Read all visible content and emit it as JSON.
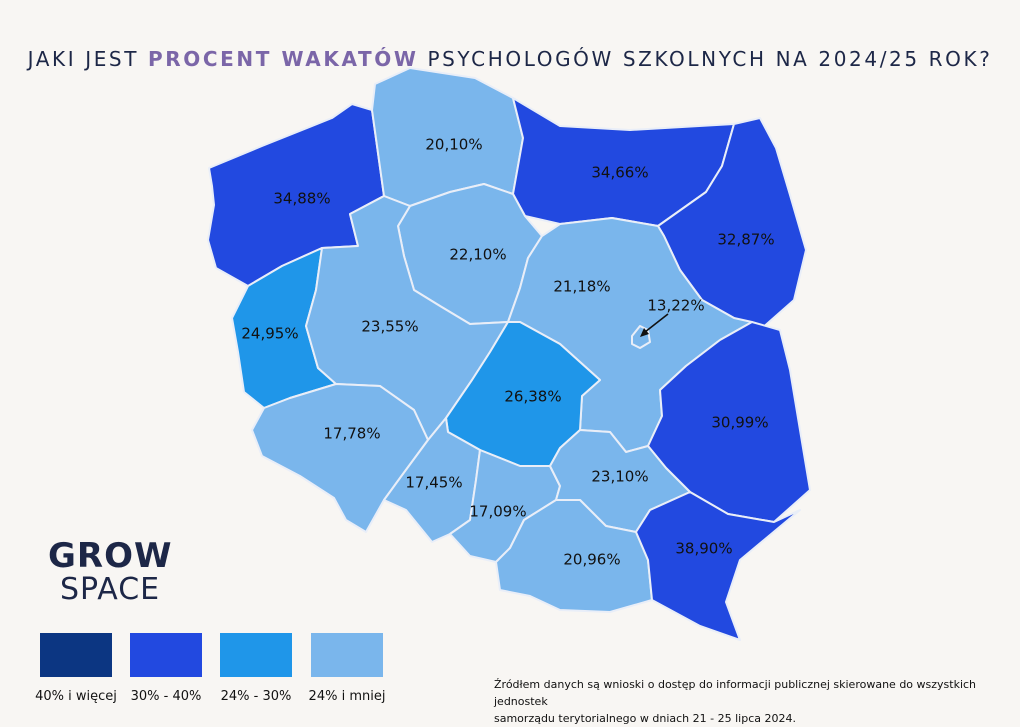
{
  "title": {
    "part1": "JAKI JEST ",
    "highlight": "PROCENT WAKATÓW",
    "part2": " PSYCHOLOGÓW SZKOLNYCH NA 2024/25 ROK?"
  },
  "colors": {
    "ge40": "#0c3682",
    "30_40": "#2249e0",
    "24_30": "#1f96e9",
    "le24": "#7ab6ec",
    "title_highlight": "#7b66a8"
  },
  "regions": [
    {
      "name": "zachodniopomorskie",
      "value": "34,88%",
      "class": "30_40"
    },
    {
      "name": "pomorskie",
      "value": "20,10%",
      "class": "le24"
    },
    {
      "name": "warminsko-mazurskie",
      "value": "34,66%",
      "class": "30_40"
    },
    {
      "name": "podlaskie",
      "value": "32,87%",
      "class": "30_40"
    },
    {
      "name": "kujawsko-pomorskie",
      "value": "22,10%",
      "class": "le24"
    },
    {
      "name": "mazowieckie",
      "value": "21,18%",
      "class": "le24"
    },
    {
      "name": "warszawa",
      "value": "13,22%",
      "class": "le24"
    },
    {
      "name": "lubuskie",
      "value": "24,95%",
      "class": "24_30"
    },
    {
      "name": "wielkopolskie",
      "value": "23,55%",
      "class": "le24"
    },
    {
      "name": "lodzkie",
      "value": "26,38%",
      "class": "24_30"
    },
    {
      "name": "lubelskie",
      "value": "30,99%",
      "class": "30_40"
    },
    {
      "name": "dolnoslaskie",
      "value": "17,78%",
      "class": "le24"
    },
    {
      "name": "opolskie",
      "value": "17,45%",
      "class": "le24"
    },
    {
      "name": "slaskie",
      "value": "17,09%",
      "class": "le24"
    },
    {
      "name": "swietokrzyskie",
      "value": "23,10%",
      "class": "le24"
    },
    {
      "name": "malopolskie",
      "value": "20,96%",
      "class": "le24"
    },
    {
      "name": "podkarpackie",
      "value": "38,90%",
      "class": "30_40"
    }
  ],
  "logo": {
    "line1": "GROW",
    "line2": "SPACE"
  },
  "legend": [
    {
      "label": "40% i więcej",
      "color": "#0c3682"
    },
    {
      "label": "30% - 40%",
      "color": "#2249e0"
    },
    {
      "label": "24% - 30%",
      "color": "#1f96e9"
    },
    {
      "label": "24% i mniej",
      "color": "#7ab6ec"
    }
  ],
  "source": {
    "line1": "Źródłem danych są wnioski o dostęp do informacji publicznej skierowane do wszystkich jednostek",
    "line2": "samorządu terytorialnego w dniach 21 - 25 lipca 2024."
  }
}
